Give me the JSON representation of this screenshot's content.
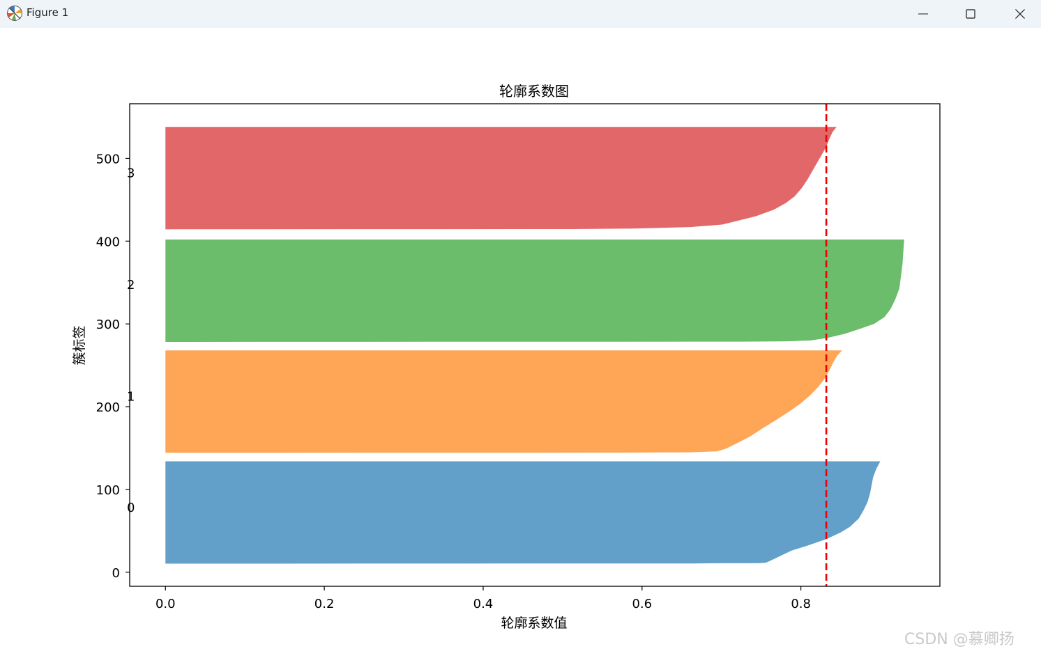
{
  "window": {
    "title": "Figure 1",
    "icon": "matplotlib-icon",
    "controls": {
      "minimize": "minimize-icon",
      "maximize": "maximize-icon",
      "close": "close-icon"
    }
  },
  "watermark": "CSDN @慕卿扬",
  "chart_data": {
    "type": "silhouette",
    "title": "轮廓系数图",
    "xlabel": "轮廓系数值",
    "ylabel": "簇标签",
    "xlim": [
      -0.045,
      0.975
    ],
    "ylim": [
      -17,
      566
    ],
    "xticks": [
      0.0,
      0.2,
      0.4,
      0.6,
      0.8
    ],
    "xtick_labels": [
      "0.0",
      "0.2",
      "0.4",
      "0.6",
      "0.8"
    ],
    "yticks": [
      0,
      100,
      200,
      300,
      400,
      500
    ],
    "ytick_labels": [
      "0",
      "100",
      "200",
      "300",
      "400",
      "500"
    ],
    "average_silhouette": 0.832,
    "grid": false,
    "clusters": [
      {
        "label": "0",
        "y_lower": 10,
        "y_upper": 134,
        "label_y": 79,
        "color": "#1f77b4",
        "profile": [
          [
            0.0,
            0.0
          ],
          [
            0.3,
            0.0
          ],
          [
            0.6,
            0.665
          ],
          [
            0.85,
            0.696
          ],
          [
            0.9,
            0.735
          ],
          [
            1.0,
            0.748
          ],
          [
            1.5,
            0.756
          ],
          [
            4,
            0.762
          ],
          [
            10,
            0.775
          ],
          [
            16,
            0.788
          ],
          [
            22,
            0.808
          ],
          [
            30,
            0.832
          ],
          [
            38,
            0.85
          ],
          [
            45,
            0.862
          ],
          [
            55,
            0.873
          ],
          [
            65,
            0.879
          ],
          [
            75,
            0.884
          ],
          [
            85,
            0.887
          ],
          [
            95,
            0.889
          ],
          [
            105,
            0.891
          ],
          [
            115,
            0.895
          ],
          [
            124,
            0.9
          ]
        ]
      },
      {
        "label": "1",
        "y_lower": 144,
        "y_upper": 268,
        "label_y": 213,
        "color": "#ff7f0e",
        "profile": [
          [
            0.0,
            0.0
          ],
          [
            0.3,
            0.0
          ],
          [
            0.5,
            0.545
          ],
          [
            0.8,
            0.66
          ],
          [
            2,
            0.694
          ],
          [
            5,
            0.705
          ],
          [
            12,
            0.72
          ],
          [
            20,
            0.736
          ],
          [
            30,
            0.752
          ],
          [
            40,
            0.769
          ],
          [
            50,
            0.785
          ],
          [
            60,
            0.8
          ],
          [
            70,
            0.812
          ],
          [
            80,
            0.822
          ],
          [
            90,
            0.83
          ],
          [
            100,
            0.836
          ],
          [
            110,
            0.841
          ],
          [
            118,
            0.846
          ],
          [
            124,
            0.852
          ]
        ]
      },
      {
        "label": "2",
        "y_lower": 278,
        "y_upper": 402,
        "label_y": 348,
        "color": "#2ca02c",
        "profile": [
          [
            0.0,
            0.0
          ],
          [
            0.3,
            0.0
          ],
          [
            0.6,
            0.727
          ],
          [
            0.9,
            0.78
          ],
          [
            2,
            0.812
          ],
          [
            5,
            0.833
          ],
          [
            10,
            0.855
          ],
          [
            16,
            0.874
          ],
          [
            22,
            0.892
          ],
          [
            30,
            0.905
          ],
          [
            40,
            0.913
          ],
          [
            52,
            0.919
          ],
          [
            65,
            0.924
          ],
          [
            80,
            0.926
          ],
          [
            95,
            0.928
          ],
          [
            110,
            0.929
          ],
          [
            124,
            0.93
          ]
        ]
      },
      {
        "label": "3",
        "y_lower": 414,
        "y_upper": 538,
        "label_y": 483,
        "color": "#d62728",
        "profile": [
          [
            0.0,
            0.0
          ],
          [
            0.3,
            0.0
          ],
          [
            0.6,
            0.512
          ],
          [
            1.2,
            0.59
          ],
          [
            3,
            0.661
          ],
          [
            6,
            0.701
          ],
          [
            10,
            0.718
          ],
          [
            16,
            0.743
          ],
          [
            24,
            0.766
          ],
          [
            32,
            0.781
          ],
          [
            40,
            0.792
          ],
          [
            50,
            0.801
          ],
          [
            60,
            0.808
          ],
          [
            70,
            0.814
          ],
          [
            80,
            0.82
          ],
          [
            90,
            0.826
          ],
          [
            100,
            0.832
          ],
          [
            110,
            0.836
          ],
          [
            118,
            0.84
          ],
          [
            124,
            0.845
          ]
        ]
      }
    ]
  }
}
